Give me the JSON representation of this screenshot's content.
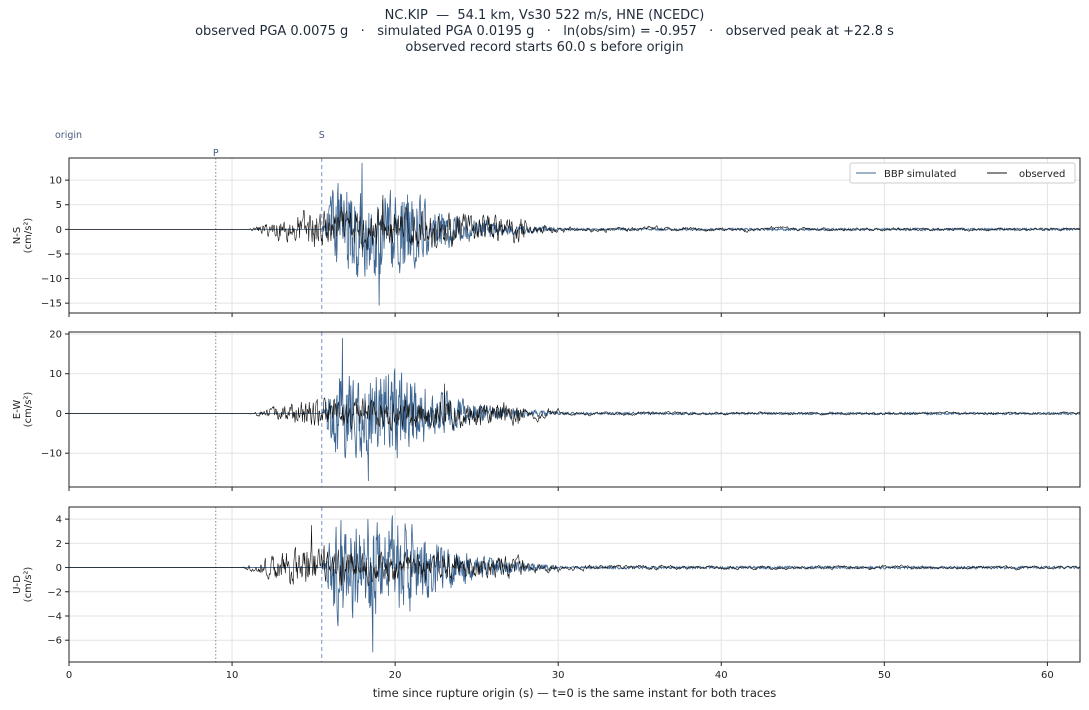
{
  "title": {
    "line1": "NC.KIP  —  54.1 km, Vs30 522 m/s, HNE (NCEDC)",
    "line2": "observed PGA 0.0075 g   ·   simulated PGA 0.0195 g   ·   ln(obs/sim) = -0.957   ·   observed peak at +22.8 s",
    "line3": "observed record starts 60.0 s before origin"
  },
  "colors": {
    "simulated": "#3d6591",
    "observed": "#111111",
    "p_marker": "#888888",
    "s_marker": "#7f95c0",
    "grid": "#e3e3e3"
  },
  "chart_data": {
    "type": "line",
    "xlabel": "time since rupture origin (s)   —   t=0 is the same instant for both traces",
    "xlim": [
      0,
      62
    ],
    "xticks": [
      0,
      10,
      20,
      30,
      40,
      50,
      60
    ],
    "grid": true,
    "legend": {
      "placement": "top-right",
      "entries": [
        "BBP simulated",
        "observed"
      ]
    },
    "markers": [
      {
        "label": "origin",
        "t": 0
      },
      {
        "label": "P",
        "t": 9.0
      },
      {
        "label": "S",
        "t": 15.5
      }
    ],
    "panels": [
      {
        "ylabel": "N-S\n(cm/s²)",
        "ylim": [
          -17,
          14.5
        ],
        "yticks": [
          -15,
          -10,
          -5,
          0,
          5,
          10
        ],
        "observed": {
          "start": 11.0,
          "coda_amp": 6.0,
          "peak": 7.0,
          "peak_t": 19.5
        },
        "simulated": {
          "start": 15.5,
          "end": 30.0,
          "peak_pos": 13.5,
          "peak_neg": -15.5,
          "peak_t": 18.5
        }
      },
      {
        "ylabel": "E-W\n(cm/s²)",
        "ylim": [
          -18.5,
          20.5
        ],
        "yticks": [
          -10,
          0,
          10,
          20
        ],
        "observed": {
          "start": 11.0,
          "coda_amp": 5.5,
          "peak": 7.5,
          "peak_t": 22.8
        },
        "simulated": {
          "start": 15.5,
          "end": 30.0,
          "peak_pos": 19.0,
          "peak_neg": -17.0,
          "peak_t": 19.0
        }
      },
      {
        "ylabel": "U-D\n(cm/s²)",
        "ylim": [
          -7.8,
          5.0
        ],
        "yticks": [
          -6,
          -4,
          -2,
          0,
          2,
          4
        ],
        "observed": {
          "start": 10.5,
          "coda_amp": 2.5,
          "peak": 3.5,
          "peak_t": 15.0
        },
        "simulated": {
          "start": 15.5,
          "end": 30.0,
          "peak_pos": 4.3,
          "peak_neg": -7.0,
          "peak_t": 20.5
        }
      }
    ]
  }
}
